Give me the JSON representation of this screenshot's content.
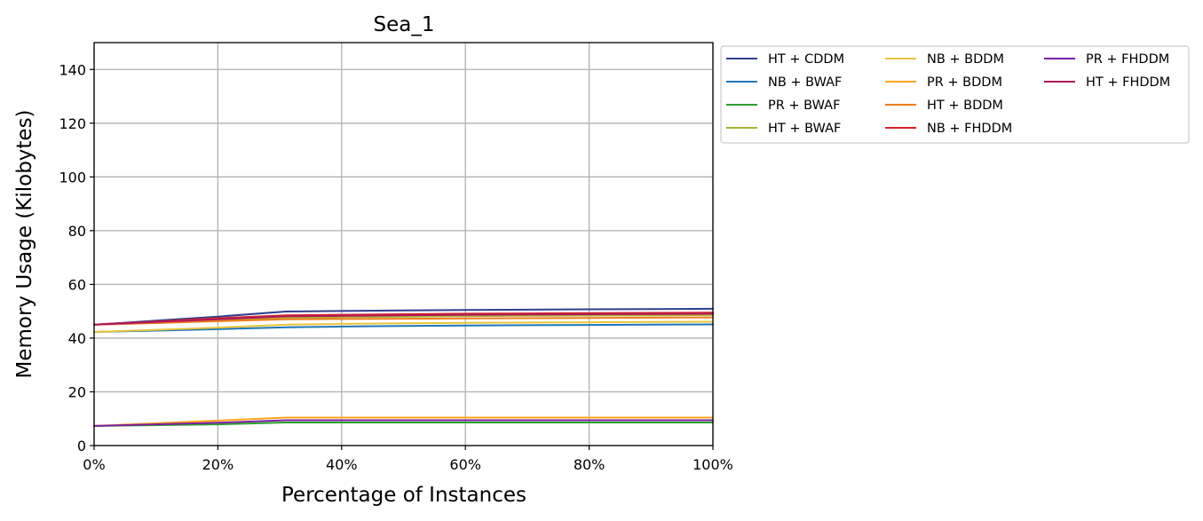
{
  "chart_data": {
    "type": "line",
    "title": "Sea_1",
    "xlabel": "Percentage of Instances",
    "ylabel": "Memory Usage (Kilobytes)",
    "xlim": [
      0,
      100
    ],
    "ylim": [
      0,
      150
    ],
    "x_ticks": [
      0,
      20,
      40,
      60,
      80,
      100
    ],
    "x_tick_labels": [
      "0%",
      "20%",
      "40%",
      "60%",
      "80%",
      "100%"
    ],
    "y_ticks": [
      0,
      20,
      40,
      60,
      80,
      100,
      120,
      140
    ],
    "y_tick_labels": [
      "0",
      "20",
      "40",
      "60",
      "80",
      "100",
      "120",
      "140"
    ],
    "grid": true,
    "legend_position": "outside-right-top",
    "legend_columns": 3,
    "x": [
      0,
      10,
      20,
      31,
      40,
      50,
      60,
      70,
      80,
      90,
      100
    ],
    "series": [
      {
        "name": "HT + CDDM",
        "color": "#2e3f8f",
        "values": [
          45.0,
          46.5,
          48.0,
          49.9,
          50.1,
          50.3,
          50.5,
          50.6,
          50.7,
          50.8,
          50.9
        ]
      },
      {
        "name": "NB + BWAF",
        "color": "#1f77b4",
        "values": [
          42.3,
          42.8,
          43.3,
          44.0,
          44.3,
          44.5,
          44.7,
          44.8,
          44.9,
          45.0,
          45.1
        ]
      },
      {
        "name": "PR + BWAF",
        "color": "#2ca02c",
        "values": [
          7.3,
          7.6,
          7.9,
          8.6,
          8.6,
          8.6,
          8.6,
          8.6,
          8.6,
          8.6,
          8.6
        ]
      },
      {
        "name": "HT + BWAF",
        "color": "#a9b032",
        "values": [
          45.0,
          45.8,
          46.6,
          47.6,
          47.8,
          48.0,
          48.2,
          48.3,
          48.4,
          48.5,
          48.6
        ]
      },
      {
        "name": "NB + BDDM",
        "color": "#e8c53a",
        "values": [
          42.3,
          43.1,
          43.9,
          45.0,
          45.3,
          45.5,
          45.7,
          45.8,
          45.9,
          46.0,
          46.1
        ]
      },
      {
        "name": "PR + BDDM",
        "color": "#ffa51f",
        "values": [
          7.3,
          8.3,
          9.3,
          10.4,
          10.4,
          10.4,
          10.4,
          10.4,
          10.4,
          10.4,
          10.4
        ]
      },
      {
        "name": "HT + BDDM",
        "color": "#ee7d1c",
        "values": [
          45.0,
          45.6,
          46.3,
          47.0,
          47.1,
          47.2,
          47.3,
          47.4,
          47.5,
          47.6,
          47.7
        ]
      },
      {
        "name": "NB + FHDDM",
        "color": "#d62728",
        "values": [
          45.0,
          46.2,
          47.4,
          48.5,
          48.7,
          48.9,
          49.1,
          49.2,
          49.3,
          49.4,
          49.5
        ]
      },
      {
        "name": "PR + FHDDM",
        "color": "#7b1fa2",
        "values": [
          7.3,
          7.9,
          8.5,
          9.4,
          9.4,
          9.4,
          9.4,
          9.4,
          9.4,
          9.4,
          9.4
        ]
      },
      {
        "name": "HT + FHDDM",
        "color": "#b0185a",
        "values": [
          45.0,
          46.0,
          47.0,
          48.1,
          48.3,
          48.5,
          48.7,
          48.8,
          48.9,
          49.0,
          49.1
        ]
      }
    ]
  }
}
